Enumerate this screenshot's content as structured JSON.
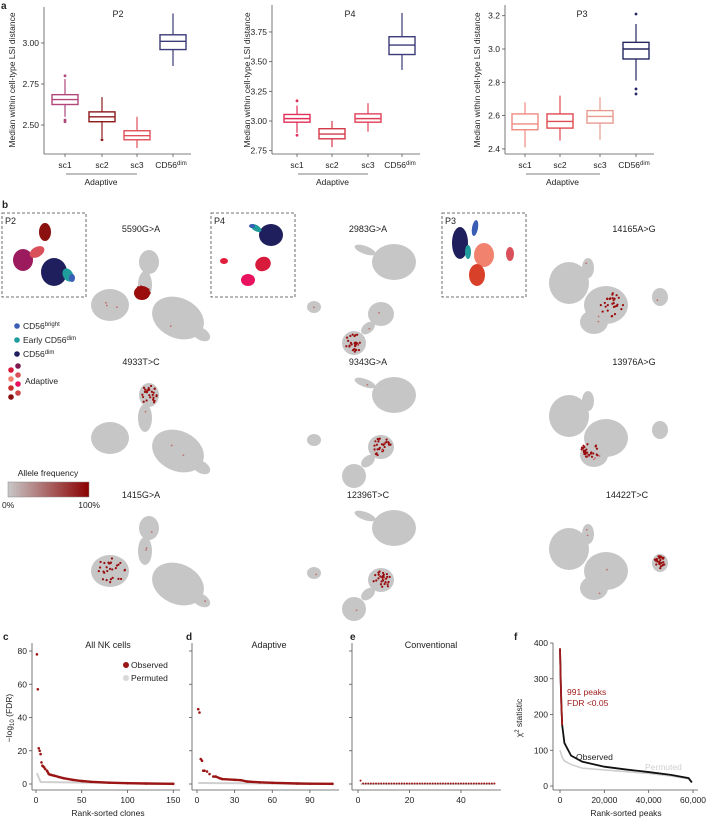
{
  "panel_letters": {
    "a": "a",
    "b": "b",
    "c": "c",
    "d": "d",
    "e": "e",
    "f": "f"
  },
  "panel_a": {
    "ylabel": "Median within cell-type LSI distance",
    "group_label": "Adaptive",
    "category_labels": [
      "sc1",
      "sc2",
      "sc3"
    ],
    "cd56_base": "CD56",
    "cd56_sup": "dim"
  },
  "panel_b": {
    "insets": [
      "P2",
      "P4",
      "P3"
    ],
    "mutations": [
      [
        "5590G>A",
        "4933T>C",
        "1415G>A"
      ],
      [
        "2983G>A",
        "9343G>A",
        "12396T>C"
      ],
      [
        "14165A>G",
        "13976A>G",
        "14422T>C"
      ]
    ],
    "legend": {
      "items": [
        {
          "base": "CD56",
          "sup": "bright",
          "prefix": "",
          "color": "#3a5db5"
        },
        {
          "base": "CD56",
          "sup": "dim",
          "prefix": "Early ",
          "color": "#1f9c9c"
        },
        {
          "base": "CD56",
          "sup": "dim",
          "prefix": "",
          "color": "#1e1f5c"
        }
      ],
      "adaptive_label": "Adaptive",
      "adaptive_colors": [
        "#d81b3c",
        "#7e1a4e",
        "#f0826e",
        "#d9505a",
        "#c9302c",
        "#e8125e",
        "#8b1010",
        "#cc4848"
      ]
    },
    "colorbar": {
      "title": "Allele frequency",
      "min_label": "0%",
      "max_label": "100%",
      "low_color": "#c8c8c8",
      "high_color": "#8b0000"
    }
  },
  "chart_data": [
    {
      "type": "box",
      "title": "P2",
      "ylabel": "Median within cell-type LSI distance",
      "categories": [
        "sc1",
        "sc2",
        "sc3",
        "CD56dim"
      ],
      "yticks": [
        2.5,
        2.75,
        3.0
      ],
      "ytick_labels": [
        "2.50",
        "2.75",
        "3.00"
      ],
      "ylim": [
        2.34,
        3.23
      ],
      "boxes": [
        {
          "q1": 2.625,
          "median": 2.655,
          "q3": 2.685,
          "low": 2.55,
          "high": 2.78,
          "outliers": [
            2.8,
            2.53,
            2.52
          ],
          "color": "#b0477a"
        },
        {
          "q1": 2.52,
          "median": 2.55,
          "q3": 2.58,
          "low": 2.42,
          "high": 2.67,
          "outliers": [
            2.41
          ],
          "color": "#8b1a1a"
        },
        {
          "q1": 2.41,
          "median": 2.435,
          "q3": 2.465,
          "low": 2.36,
          "high": 2.55,
          "outliers": [],
          "color": "#e0505a"
        },
        {
          "q1": 2.96,
          "median": 3.01,
          "q3": 3.05,
          "low": 2.86,
          "high": 3.18,
          "outliers": [],
          "color": "#3b3b78"
        }
      ]
    },
    {
      "type": "box",
      "title": "P4",
      "ylabel": "Median within cell-type LSI distance",
      "categories": [
        "sc1",
        "sc2",
        "sc3",
        "CD56dim"
      ],
      "yticks": [
        2.75,
        3.0,
        3.25,
        3.5,
        3.75
      ],
      "ytick_labels": [
        "2.75",
        "3.00",
        "3.25",
        "3.50",
        "3.75"
      ],
      "ylim": [
        2.72,
        3.98
      ],
      "boxes": [
        {
          "q1": 2.99,
          "median": 3.02,
          "q3": 3.055,
          "low": 2.9,
          "high": 3.13,
          "outliers": [
            3.17,
            2.88
          ],
          "color": "#e0305a"
        },
        {
          "q1": 2.85,
          "median": 2.89,
          "q3": 2.935,
          "low": 2.78,
          "high": 3.0,
          "outliers": [],
          "color": "#d43a4a"
        },
        {
          "q1": 2.99,
          "median": 3.02,
          "q3": 3.06,
          "low": 2.91,
          "high": 3.15,
          "outliers": [],
          "color": "#e0405a"
        },
        {
          "q1": 3.56,
          "median": 3.64,
          "q3": 3.71,
          "low": 3.43,
          "high": 3.91,
          "outliers": [],
          "color": "#3b3b78"
        }
      ]
    },
    {
      "type": "box",
      "title": "P3",
      "ylabel": "Median within cell-type LSI distance",
      "categories": [
        "sc1",
        "sc2",
        "sc3",
        "CD56dim"
      ],
      "yticks": [
        2.4,
        2.6,
        2.8,
        3.0,
        3.2
      ],
      "ytick_labels": [
        "2.4",
        "2.6",
        "2.8",
        "3.0",
        "3.2"
      ],
      "ylim": [
        2.37,
        3.27
      ],
      "boxes": [
        {
          "q1": 2.515,
          "median": 2.55,
          "q3": 2.61,
          "low": 2.41,
          "high": 2.68,
          "outliers": [],
          "color": "#f08a80"
        },
        {
          "q1": 2.525,
          "median": 2.565,
          "q3": 2.61,
          "low": 2.45,
          "high": 2.72,
          "outliers": [],
          "color": "#e04a50"
        },
        {
          "q1": 2.555,
          "median": 2.595,
          "q3": 2.63,
          "low": 2.455,
          "high": 2.71,
          "outliers": [],
          "color": "#e89a90"
        },
        {
          "q1": 2.94,
          "median": 3.0,
          "q3": 3.04,
          "low": 2.81,
          "high": 3.15,
          "outliers": [
            3.21,
            2.76,
            2.73
          ],
          "color": "#262665"
        }
      ]
    },
    {
      "type": "scatter",
      "title": "All NK cells",
      "xlabel": "Rank-sorted clones",
      "ylabel_base": "−log",
      "ylabel_sub": "10",
      "ylabel_rest": " (FDR)",
      "xticks": [
        0,
        50,
        100,
        150
      ],
      "yticks": [
        0,
        20,
        40,
        60,
        80
      ],
      "xlim": [
        0,
        153
      ],
      "ylim": [
        0,
        85
      ],
      "legend": [
        "Observed",
        "Permuted"
      ],
      "series": [
        {
          "name": "Observed",
          "color": "#9b1515",
          "x": [
            1,
            2,
            3,
            4,
            5,
            6,
            7,
            8,
            9,
            10,
            12,
            14,
            16,
            20,
            25,
            30,
            40,
            50,
            60,
            80,
            100,
            120,
            150
          ],
          "y": [
            78,
            57,
            21.5,
            20,
            18,
            13,
            11,
            10.5,
            10,
            9,
            8,
            6,
            5.5,
            5,
            4.2,
            3.5,
            2.5,
            1.8,
            1.3,
            0.8,
            0.5,
            0.3,
            0.1
          ]
        },
        {
          "name": "Permuted",
          "color": "#d0d0d0",
          "x": [
            1,
            5,
            150
          ],
          "y": [
            6.5,
            1.2,
            0.1
          ]
        }
      ]
    },
    {
      "type": "scatter",
      "title": "Adaptive",
      "xticks": [
        0,
        30,
        60,
        90
      ],
      "yticks": [
        0,
        20,
        40,
        60,
        80
      ],
      "xlim": [
        0,
        110
      ],
      "ylim": [
        0,
        85
      ],
      "series": [
        {
          "name": "Observed",
          "color": "#9b1515",
          "x": [
            1,
            2,
            3,
            4,
            5,
            6,
            8,
            10,
            13,
            15,
            18,
            20,
            30,
            35,
            40,
            50,
            60,
            80,
            90,
            108
          ],
          "y": [
            45,
            43,
            15,
            14,
            8,
            8,
            7.5,
            6,
            4.5,
            4.5,
            3.5,
            3,
            2.5,
            2.3,
            1.5,
            1,
            0.7,
            0.3,
            0.2,
            0.1
          ]
        },
        {
          "name": "Permuted",
          "color": "#d0d0d0",
          "x": [
            1,
            108
          ],
          "y": [
            0.6,
            0
          ]
        }
      ]
    },
    {
      "type": "scatter",
      "title": "Conventional",
      "xticks": [
        0,
        20,
        40
      ],
      "yticks": [
        0,
        20,
        40,
        60,
        80
      ],
      "xlim": [
        0,
        54
      ],
      "ylim": [
        0,
        85
      ],
      "series": [
        {
          "name": "Observed",
          "color": "#9b1515",
          "x_range": [
            1,
            53
          ],
          "y_const": 0.3,
          "first_y": 2
        },
        {
          "name": "Permuted",
          "color": "#d0d0d0",
          "x": [
            1,
            53
          ],
          "y": [
            0,
            0
          ]
        }
      ]
    },
    {
      "type": "line",
      "xlabel": "Rank-sorted peaks",
      "ylabel_base": "χ",
      "ylabel_sup": "2",
      "ylabel_rest": " statistic",
      "xticks": [
        0,
        20000,
        40000,
        60000
      ],
      "xtick_labels": [
        "0",
        "20,000",
        "40,000",
        "60,000"
      ],
      "yticks": [
        0,
        100,
        200,
        300,
        400
      ],
      "xlim": [
        0,
        60000
      ],
      "ylim": [
        0,
        400
      ],
      "significant_peaks": 991,
      "annotation": [
        "991 peaks",
        "FDR <0.05"
      ],
      "series_labels": [
        "Observed",
        "Permuted"
      ],
      "series": [
        {
          "name": "Observed",
          "color": "#111111",
          "sig_color": "#a01c1c",
          "x": [
            0,
            300,
            600,
            991,
            2000,
            5000,
            10000,
            20000,
            30000,
            40000,
            50000,
            58000,
            59500
          ],
          "y": [
            385,
            300,
            230,
            170,
            120,
            85,
            68,
            54,
            46,
            39,
            31,
            22,
            10
          ]
        },
        {
          "name": "Permuted",
          "color": "#cfcfcf",
          "x": [
            0,
            1000,
            2000,
            5000,
            10000,
            20000,
            30000,
            40000,
            50000,
            58000,
            59500
          ],
          "y": [
            100,
            80,
            70,
            60,
            50,
            45,
            40,
            35,
            28,
            20,
            10
          ]
        }
      ]
    }
  ]
}
